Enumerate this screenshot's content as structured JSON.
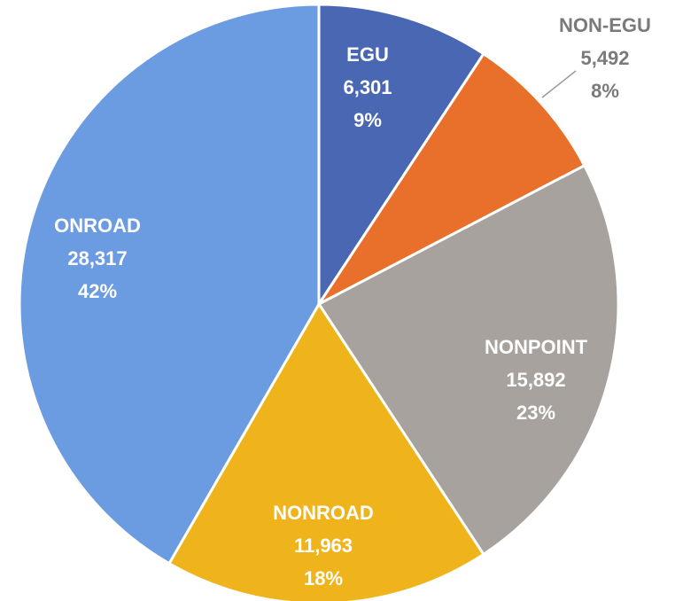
{
  "chart_data": {
    "type": "pie",
    "categories": [
      "EGU",
      "NON-EGU",
      "NONPOINT",
      "NONROAD",
      "ONROAD"
    ],
    "values": [
      6301,
      5492,
      15892,
      11963,
      28317
    ],
    "value_labels": [
      "6,301",
      "5,492",
      "15,892",
      "11,963",
      "28,317"
    ],
    "percentages": [
      9,
      8,
      23,
      18,
      42
    ],
    "percentage_labels": [
      "9%",
      "8%",
      "23%",
      "18%",
      "42%"
    ],
    "colors": [
      "#4a67b3",
      "#e8702a",
      "#a7a29e",
      "#efb41b",
      "#6b9be0"
    ]
  }
}
